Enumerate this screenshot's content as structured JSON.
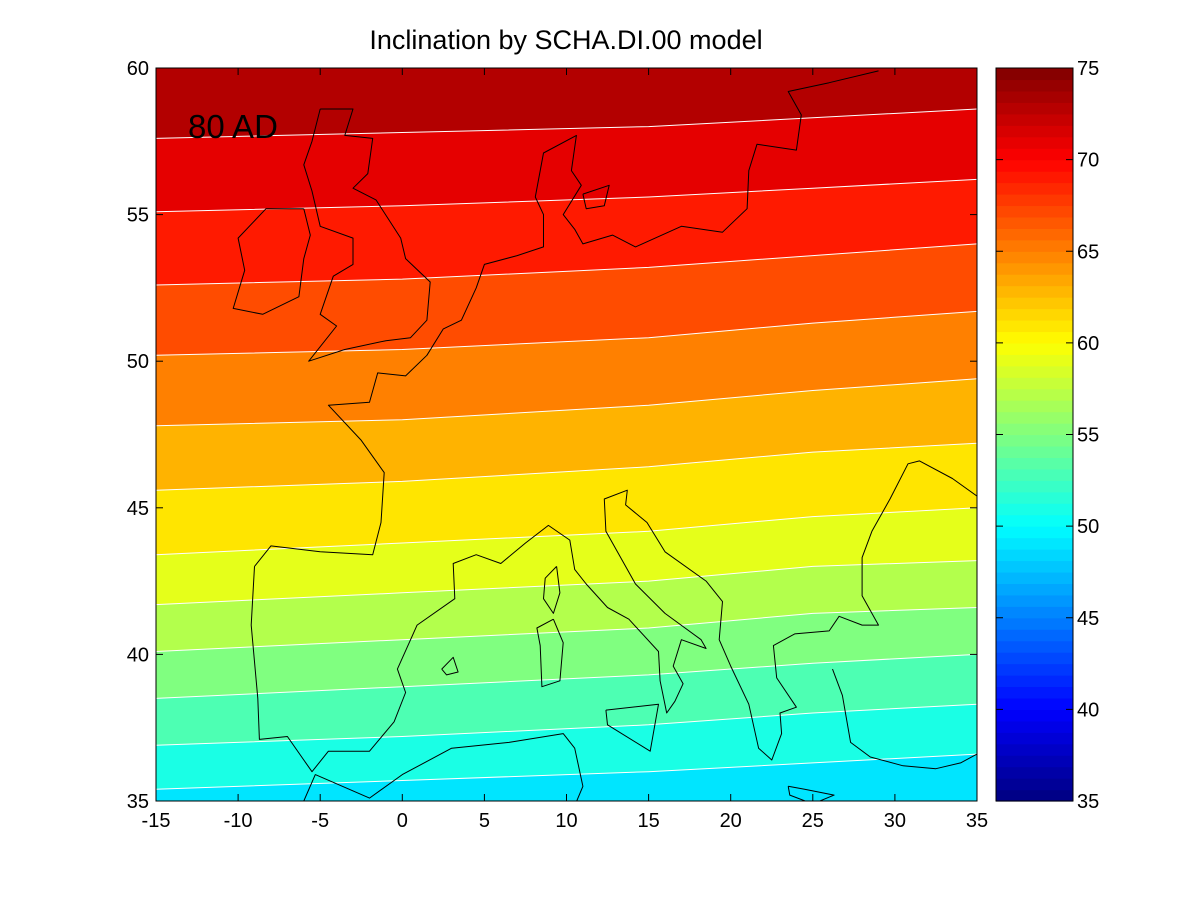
{
  "title": "Inclination by SCHA.DI.00 model",
  "annotation": "80 AD",
  "chart_data": {
    "type": "heatmap",
    "title": "Inclination by SCHA.DI.00 model",
    "annotation": "80 AD",
    "xlim": [
      -15,
      35
    ],
    "ylim": [
      35,
      60
    ],
    "x_ticks": [
      "-15",
      "-10",
      "-5",
      "0",
      "5",
      "10",
      "15",
      "20",
      "25",
      "30",
      "35"
    ],
    "y_ticks": [
      "35",
      "40",
      "45",
      "50",
      "55",
      "60"
    ],
    "colorbar": {
      "range": [
        35,
        75
      ],
      "ticks": [
        "35",
        "40",
        "45",
        "50",
        "55",
        "60",
        "65",
        "70",
        "75"
      ],
      "colormap": "jet"
    },
    "contour_levels": [
      50,
      52,
      54,
      56,
      58,
      60,
      62,
      64,
      66,
      68,
      70,
      72
    ],
    "contour_lines": [
      {
        "level": 50,
        "points": [
          [
            -15,
            35.4
          ],
          [
            0,
            35.7
          ],
          [
            15,
            36.0
          ],
          [
            25,
            36.3
          ],
          [
            35,
            36.6
          ]
        ]
      },
      {
        "level": 52,
        "points": [
          [
            -15,
            36.9
          ],
          [
            0,
            37.2
          ],
          [
            15,
            37.6
          ],
          [
            25,
            38.0
          ],
          [
            35,
            38.3
          ]
        ]
      },
      {
        "level": 54,
        "points": [
          [
            -15,
            38.5
          ],
          [
            0,
            38.9
          ],
          [
            15,
            39.3
          ],
          [
            25,
            39.7
          ],
          [
            35,
            40.0
          ]
        ]
      },
      {
        "level": 56,
        "points": [
          [
            -15,
            40.1
          ],
          [
            0,
            40.5
          ],
          [
            15,
            40.9
          ],
          [
            25,
            41.4
          ],
          [
            35,
            41.6
          ]
        ]
      },
      {
        "level": 58,
        "points": [
          [
            -15,
            41.7
          ],
          [
            0,
            42.1
          ],
          [
            15,
            42.5
          ],
          [
            25,
            43.0
          ],
          [
            35,
            43.2
          ]
        ]
      },
      {
        "level": 60,
        "points": [
          [
            -15,
            43.4
          ],
          [
            0,
            43.8
          ],
          [
            15,
            44.2
          ],
          [
            25,
            44.7
          ],
          [
            35,
            45.0
          ]
        ]
      },
      {
        "level": 62,
        "points": [
          [
            -15,
            45.6
          ],
          [
            0,
            45.9
          ],
          [
            15,
            46.4
          ],
          [
            25,
            46.9
          ],
          [
            35,
            47.2
          ]
        ]
      },
      {
        "level": 64,
        "points": [
          [
            -15,
            47.8
          ],
          [
            0,
            48.0
          ],
          [
            15,
            48.5
          ],
          [
            25,
            49.0
          ],
          [
            35,
            49.4
          ]
        ]
      },
      {
        "level": 66,
        "points": [
          [
            -15,
            50.2
          ],
          [
            0,
            50.4
          ],
          [
            15,
            50.8
          ],
          [
            25,
            51.3
          ],
          [
            35,
            51.7
          ]
        ]
      },
      {
        "level": 68,
        "points": [
          [
            -15,
            52.6
          ],
          [
            0,
            52.8
          ],
          [
            15,
            53.2
          ],
          [
            25,
            53.6
          ],
          [
            35,
            54.0
          ]
        ]
      },
      {
        "level": 70,
        "points": [
          [
            -15,
            55.1
          ],
          [
            0,
            55.3
          ],
          [
            15,
            55.6
          ],
          [
            25,
            55.9
          ],
          [
            35,
            56.2
          ]
        ]
      },
      {
        "level": 72,
        "points": [
          [
            -15,
            57.6
          ],
          [
            0,
            57.8
          ],
          [
            15,
            58.0
          ],
          [
            25,
            58.3
          ],
          [
            35,
            58.6
          ]
        ]
      }
    ],
    "coastlines": [
      {
        "name": "iberia",
        "points": [
          [
            -9.0,
            43.0
          ],
          [
            -8.0,
            43.7
          ],
          [
            -5.0,
            43.5
          ],
          [
            -1.8,
            43.4
          ],
          [
            -1.3,
            44.5
          ],
          [
            -1.1,
            46.2
          ],
          [
            -2.5,
            47.3
          ],
          [
            -4.5,
            48.5
          ],
          [
            -2.0,
            48.6
          ],
          [
            -1.5,
            49.6
          ],
          [
            0.2,
            49.5
          ],
          [
            1.5,
            50.2
          ],
          [
            2.5,
            51.1
          ],
          [
            3.6,
            51.4
          ],
          [
            4.5,
            52.5
          ],
          [
            5.0,
            53.3
          ],
          [
            7.0,
            53.6
          ],
          [
            8.6,
            53.9
          ],
          [
            8.6,
            55.0
          ],
          [
            8.1,
            55.6
          ],
          [
            8.6,
            57.1
          ],
          [
            10.6,
            57.7
          ],
          [
            10.3,
            56.5
          ],
          [
            10.9,
            56.0
          ],
          [
            9.8,
            55.0
          ],
          [
            10.5,
            54.5
          ],
          [
            11.0,
            54.0
          ],
          [
            12.8,
            54.3
          ],
          [
            14.2,
            53.9
          ],
          [
            17.0,
            54.6
          ],
          [
            19.5,
            54.4
          ],
          [
            21.0,
            55.2
          ],
          [
            21.1,
            56.5
          ],
          [
            21.6,
            57.4
          ],
          [
            24.0,
            57.2
          ],
          [
            24.3,
            58.4
          ],
          [
            23.5,
            59.2
          ],
          [
            26.0,
            59.5
          ],
          [
            29.0,
            59.9
          ]
        ]
      },
      {
        "name": "mediterranean-north",
        "points": [
          [
            -9.0,
            43.0
          ],
          [
            -9.2,
            41.0
          ],
          [
            -8.8,
            38.5
          ],
          [
            -8.7,
            37.1
          ],
          [
            -7.0,
            37.2
          ],
          [
            -6.0,
            36.4
          ],
          [
            -5.5,
            36.0
          ],
          [
            -4.5,
            36.7
          ],
          [
            -2.0,
            36.7
          ],
          [
            -0.5,
            37.7
          ],
          [
            0.2,
            38.7
          ],
          [
            -0.3,
            39.5
          ],
          [
            0.9,
            41.0
          ],
          [
            3.2,
            41.9
          ],
          [
            3.1,
            43.1
          ],
          [
            4.5,
            43.4
          ],
          [
            6.0,
            43.1
          ],
          [
            7.5,
            43.8
          ],
          [
            8.9,
            44.4
          ],
          [
            10.2,
            43.9
          ],
          [
            10.5,
            42.9
          ],
          [
            11.2,
            42.4
          ],
          [
            12.5,
            41.6
          ],
          [
            13.8,
            41.2
          ],
          [
            15.6,
            40.1
          ],
          [
            15.7,
            39.1
          ],
          [
            16.1,
            38.0
          ],
          [
            16.6,
            38.4
          ],
          [
            17.1,
            39.0
          ],
          [
            16.5,
            39.6
          ],
          [
            17.0,
            40.5
          ],
          [
            18.5,
            40.2
          ],
          [
            18.2,
            40.5
          ],
          [
            16.0,
            41.4
          ],
          [
            14.2,
            42.4
          ],
          [
            12.4,
            44.2
          ],
          [
            12.3,
            45.3
          ],
          [
            13.7,
            45.6
          ],
          [
            13.6,
            45.1
          ],
          [
            14.9,
            44.5
          ],
          [
            16.0,
            43.5
          ],
          [
            18.5,
            42.5
          ],
          [
            19.5,
            41.8
          ],
          [
            19.3,
            40.5
          ],
          [
            20.0,
            39.6
          ],
          [
            21.1,
            38.3
          ],
          [
            21.7,
            36.8
          ],
          [
            22.5,
            36.4
          ],
          [
            23.1,
            37.3
          ],
          [
            23.0,
            38.0
          ],
          [
            24.0,
            38.2
          ],
          [
            22.8,
            39.2
          ],
          [
            22.6,
            40.3
          ],
          [
            23.9,
            40.7
          ],
          [
            26.0,
            40.8
          ],
          [
            26.6,
            41.3
          ],
          [
            28.0,
            41.0
          ],
          [
            29.0,
            41.0
          ],
          [
            28.0,
            42.0
          ],
          [
            28.0,
            43.3
          ],
          [
            28.6,
            44.2
          ],
          [
            29.7,
            45.3
          ],
          [
            30.8,
            46.5
          ],
          [
            31.5,
            46.6
          ],
          [
            33.5,
            46.0
          ],
          [
            35.0,
            45.4
          ]
        ]
      },
      {
        "name": "africa-north",
        "points": [
          [
            -6.0,
            35.0
          ],
          [
            -5.3,
            35.9
          ],
          [
            -2.0,
            35.1
          ],
          [
            0.0,
            35.9
          ],
          [
            3.0,
            36.8
          ],
          [
            6.5,
            37.0
          ],
          [
            9.8,
            37.3
          ],
          [
            10.5,
            36.8
          ],
          [
            11.0,
            35.5
          ],
          [
            10.1,
            34.3
          ]
        ]
      },
      {
        "name": "anatolia",
        "points": [
          [
            26.2,
            39.5
          ],
          [
            26.8,
            38.6
          ],
          [
            27.3,
            37.0
          ],
          [
            28.5,
            36.5
          ],
          [
            30.5,
            36.2
          ],
          [
            32.5,
            36.1
          ],
          [
            34.0,
            36.3
          ],
          [
            35.0,
            36.6
          ]
        ]
      },
      {
        "name": "great-britain",
        "points": [
          [
            -5.0,
            58.6
          ],
          [
            -3.0,
            58.6
          ],
          [
            -3.5,
            57.7
          ],
          [
            -1.8,
            57.6
          ],
          [
            -2.1,
            56.4
          ],
          [
            -3.0,
            55.9
          ],
          [
            -1.6,
            55.5
          ],
          [
            -0.1,
            54.2
          ],
          [
            0.2,
            53.5
          ],
          [
            1.7,
            52.7
          ],
          [
            1.5,
            51.4
          ],
          [
            0.5,
            50.8
          ],
          [
            -1.0,
            50.7
          ],
          [
            -3.5,
            50.4
          ],
          [
            -5.7,
            50.0
          ],
          [
            -4.0,
            51.2
          ],
          [
            -5.0,
            51.6
          ],
          [
            -4.2,
            52.9
          ],
          [
            -3.0,
            53.3
          ],
          [
            -3.0,
            54.2
          ],
          [
            -5.0,
            54.6
          ],
          [
            -5.5,
            55.8
          ],
          [
            -6.0,
            56.7
          ],
          [
            -5.5,
            57.5
          ],
          [
            -5.0,
            58.6
          ]
        ]
      },
      {
        "name": "ireland",
        "points": [
          [
            -6.0,
            55.2
          ],
          [
            -8.3,
            55.2
          ],
          [
            -10.0,
            54.2
          ],
          [
            -9.6,
            53.1
          ],
          [
            -10.3,
            51.8
          ],
          [
            -8.5,
            51.6
          ],
          [
            -6.3,
            52.2
          ],
          [
            -6.0,
            53.5
          ],
          [
            -5.6,
            54.3
          ],
          [
            -6.0,
            55.2
          ]
        ]
      },
      {
        "name": "corsica",
        "points": [
          [
            9.4,
            43.0
          ],
          [
            9.6,
            42.1
          ],
          [
            9.2,
            41.4
          ],
          [
            8.6,
            41.9
          ],
          [
            8.7,
            42.6
          ],
          [
            9.4,
            43.0
          ]
        ]
      },
      {
        "name": "sardinia",
        "points": [
          [
            9.2,
            41.2
          ],
          [
            9.8,
            40.4
          ],
          [
            9.6,
            39.1
          ],
          [
            8.5,
            38.9
          ],
          [
            8.4,
            40.3
          ],
          [
            8.2,
            40.9
          ],
          [
            9.2,
            41.2
          ]
        ]
      },
      {
        "name": "sicily",
        "points": [
          [
            12.4,
            38.1
          ],
          [
            15.6,
            38.3
          ],
          [
            15.1,
            36.7
          ],
          [
            12.5,
            37.6
          ],
          [
            12.4,
            38.1
          ]
        ]
      },
      {
        "name": "mallorca",
        "points": [
          [
            2.4,
            39.5
          ],
          [
            3.1,
            39.9
          ],
          [
            3.4,
            39.4
          ],
          [
            2.7,
            39.3
          ],
          [
            2.4,
            39.5
          ]
        ]
      },
      {
        "name": "crete",
        "points": [
          [
            23.5,
            35.5
          ],
          [
            24.5,
            35.4
          ],
          [
            26.3,
            35.2
          ],
          [
            25.0,
            34.9
          ],
          [
            23.6,
            35.2
          ],
          [
            23.5,
            35.5
          ]
        ]
      },
      {
        "name": "zealand",
        "points": [
          [
            11.0,
            55.7
          ],
          [
            12.6,
            56.0
          ],
          [
            12.3,
            55.3
          ],
          [
            11.2,
            55.2
          ],
          [
            11.0,
            55.7
          ]
        ]
      }
    ]
  }
}
